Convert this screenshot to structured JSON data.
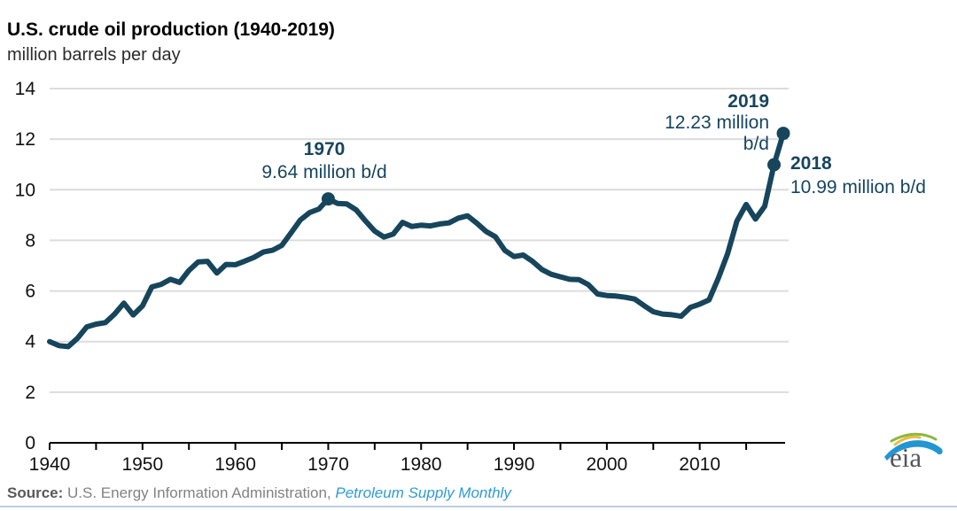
{
  "header": {
    "title": "U.S. crude oil production (1940-2019)",
    "subtitle": "million barrels per day"
  },
  "chart_data": {
    "type": "line",
    "title": "U.S. crude oil production (1940-2019)",
    "ylabel": "million barrels per day",
    "xlabel": "",
    "grid": "horizontal",
    "legend": "none",
    "ylim": [
      0,
      14
    ],
    "xlim": [
      1940,
      2019
    ],
    "yticks": [
      0,
      2,
      4,
      6,
      8,
      10,
      12,
      14
    ],
    "xtick_labels": [
      1940,
      1950,
      1960,
      1970,
      1980,
      1990,
      2000,
      2010
    ],
    "xtick_minor_step": 5,
    "line_color": "#16455c",
    "x": [
      1940,
      1941,
      1942,
      1943,
      1944,
      1945,
      1946,
      1947,
      1948,
      1949,
      1950,
      1951,
      1952,
      1953,
      1954,
      1955,
      1956,
      1957,
      1958,
      1959,
      1960,
      1961,
      1962,
      1963,
      1964,
      1965,
      1966,
      1967,
      1968,
      1969,
      1970,
      1971,
      1972,
      1973,
      1974,
      1975,
      1976,
      1977,
      1978,
      1979,
      1980,
      1981,
      1982,
      1983,
      1984,
      1985,
      1986,
      1987,
      1988,
      1989,
      1990,
      1991,
      1992,
      1993,
      1994,
      1995,
      1996,
      1997,
      1998,
      1999,
      2000,
      2001,
      2002,
      2003,
      2004,
      2005,
      2006,
      2007,
      2008,
      2009,
      2010,
      2011,
      2012,
      2013,
      2014,
      2015,
      2016,
      2017,
      2018,
      2019
    ],
    "values": [
      4.0,
      3.84,
      3.8,
      4.13,
      4.58,
      4.69,
      4.75,
      5.09,
      5.52,
      5.05,
      5.41,
      6.16,
      6.26,
      6.46,
      6.34,
      6.81,
      7.15,
      7.17,
      6.71,
      7.05,
      7.04,
      7.18,
      7.33,
      7.54,
      7.61,
      7.8,
      8.3,
      8.81,
      9.1,
      9.24,
      9.64,
      9.46,
      9.44,
      9.21,
      8.77,
      8.37,
      8.13,
      8.25,
      8.71,
      8.55,
      8.6,
      8.57,
      8.65,
      8.69,
      8.88,
      8.97,
      8.68,
      8.35,
      8.14,
      7.61,
      7.36,
      7.42,
      7.17,
      6.85,
      6.66,
      6.56,
      6.46,
      6.45,
      6.25,
      5.88,
      5.82,
      5.8,
      5.75,
      5.68,
      5.42,
      5.18,
      5.09,
      5.06,
      5.0,
      5.35,
      5.48,
      5.65,
      6.5,
      7.47,
      8.76,
      9.42,
      8.84,
      9.35,
      10.99,
      12.23
    ],
    "annotations": [
      {
        "year": 1970,
        "value": 9.64,
        "year_label": "1970",
        "value_label": "9.64 million b/d"
      },
      {
        "year": 2019,
        "value": 12.23,
        "year_label": "2019",
        "value_label_line1": "12.23 million",
        "value_label_line2": "b/d"
      },
      {
        "year": 2018,
        "value": 10.99,
        "year_label": "2018",
        "value_label": "10.99 million b/d"
      }
    ]
  },
  "source": {
    "label": "Source:",
    "text": " U.S. Energy Information Administration, ",
    "publication": "Petroleum Supply Monthly"
  },
  "logo": {
    "text": "eia"
  },
  "colors": {
    "line": "#16455c",
    "annotation_text": "#17455e",
    "gridline": "#dcdcdc",
    "axis": "#000000",
    "tick_label": "#111111",
    "source_text": "#828282",
    "source_label": "#595959",
    "publication_link": "#2e9bd6",
    "bottom_divider": "#bccde0",
    "logo_gray": "#55565a",
    "logo_green": "#8ab73e",
    "logo_yellow": "#e9bc3f",
    "logo_blue": "#2196d3"
  }
}
